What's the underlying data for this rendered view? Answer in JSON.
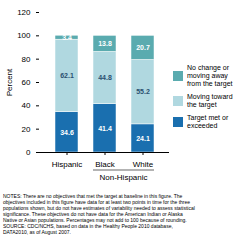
{
  "chart_data": {
    "type": "bar",
    "stacked": true,
    "data_labels": true,
    "categories": [
      "Hispanic",
      "Black",
      "White"
    ],
    "series": [
      {
        "name": "Target met or\nexceeded",
        "color": "#1a6faf",
        "values": [
          34.6,
          41.4,
          24.1
        ]
      },
      {
        "name": "Moving toward\nthe target",
        "color": "#b0d8e0",
        "values": [
          62.1,
          44.8,
          55.2
        ]
      },
      {
        "name": "No change or\nmoving away\nfrom the target",
        "color": "#5aabaf",
        "values": [
          3.4,
          13.8,
          20.7
        ]
      }
    ],
    "ylabel": "Percent",
    "ylim": [
      0,
      120
    ],
    "yticks": [
      0,
      20,
      40,
      60,
      80,
      100,
      120
    ],
    "legend": "right",
    "annotations": [
      {
        "text": "Non-Hispanic",
        "categories": [
          "Black",
          "White"
        ]
      }
    ],
    "notes": "NOTES: There are no objectives that met the target at baseline in this figure. The\nobjectives included in this figure have data for at least two points in time for the three\npopulations shown, but do not have estimates of variability needed to assess statistical\nsignificance. These objectives do not have data for the American Indian or Alaska\nNative or Asian populations. Percentages may not add to 100 because of rounding.\nSOURCE: CDC/NCHS, based on data in the Healthy People 2010 database,\nDATA2010, as of August 2007."
  }
}
